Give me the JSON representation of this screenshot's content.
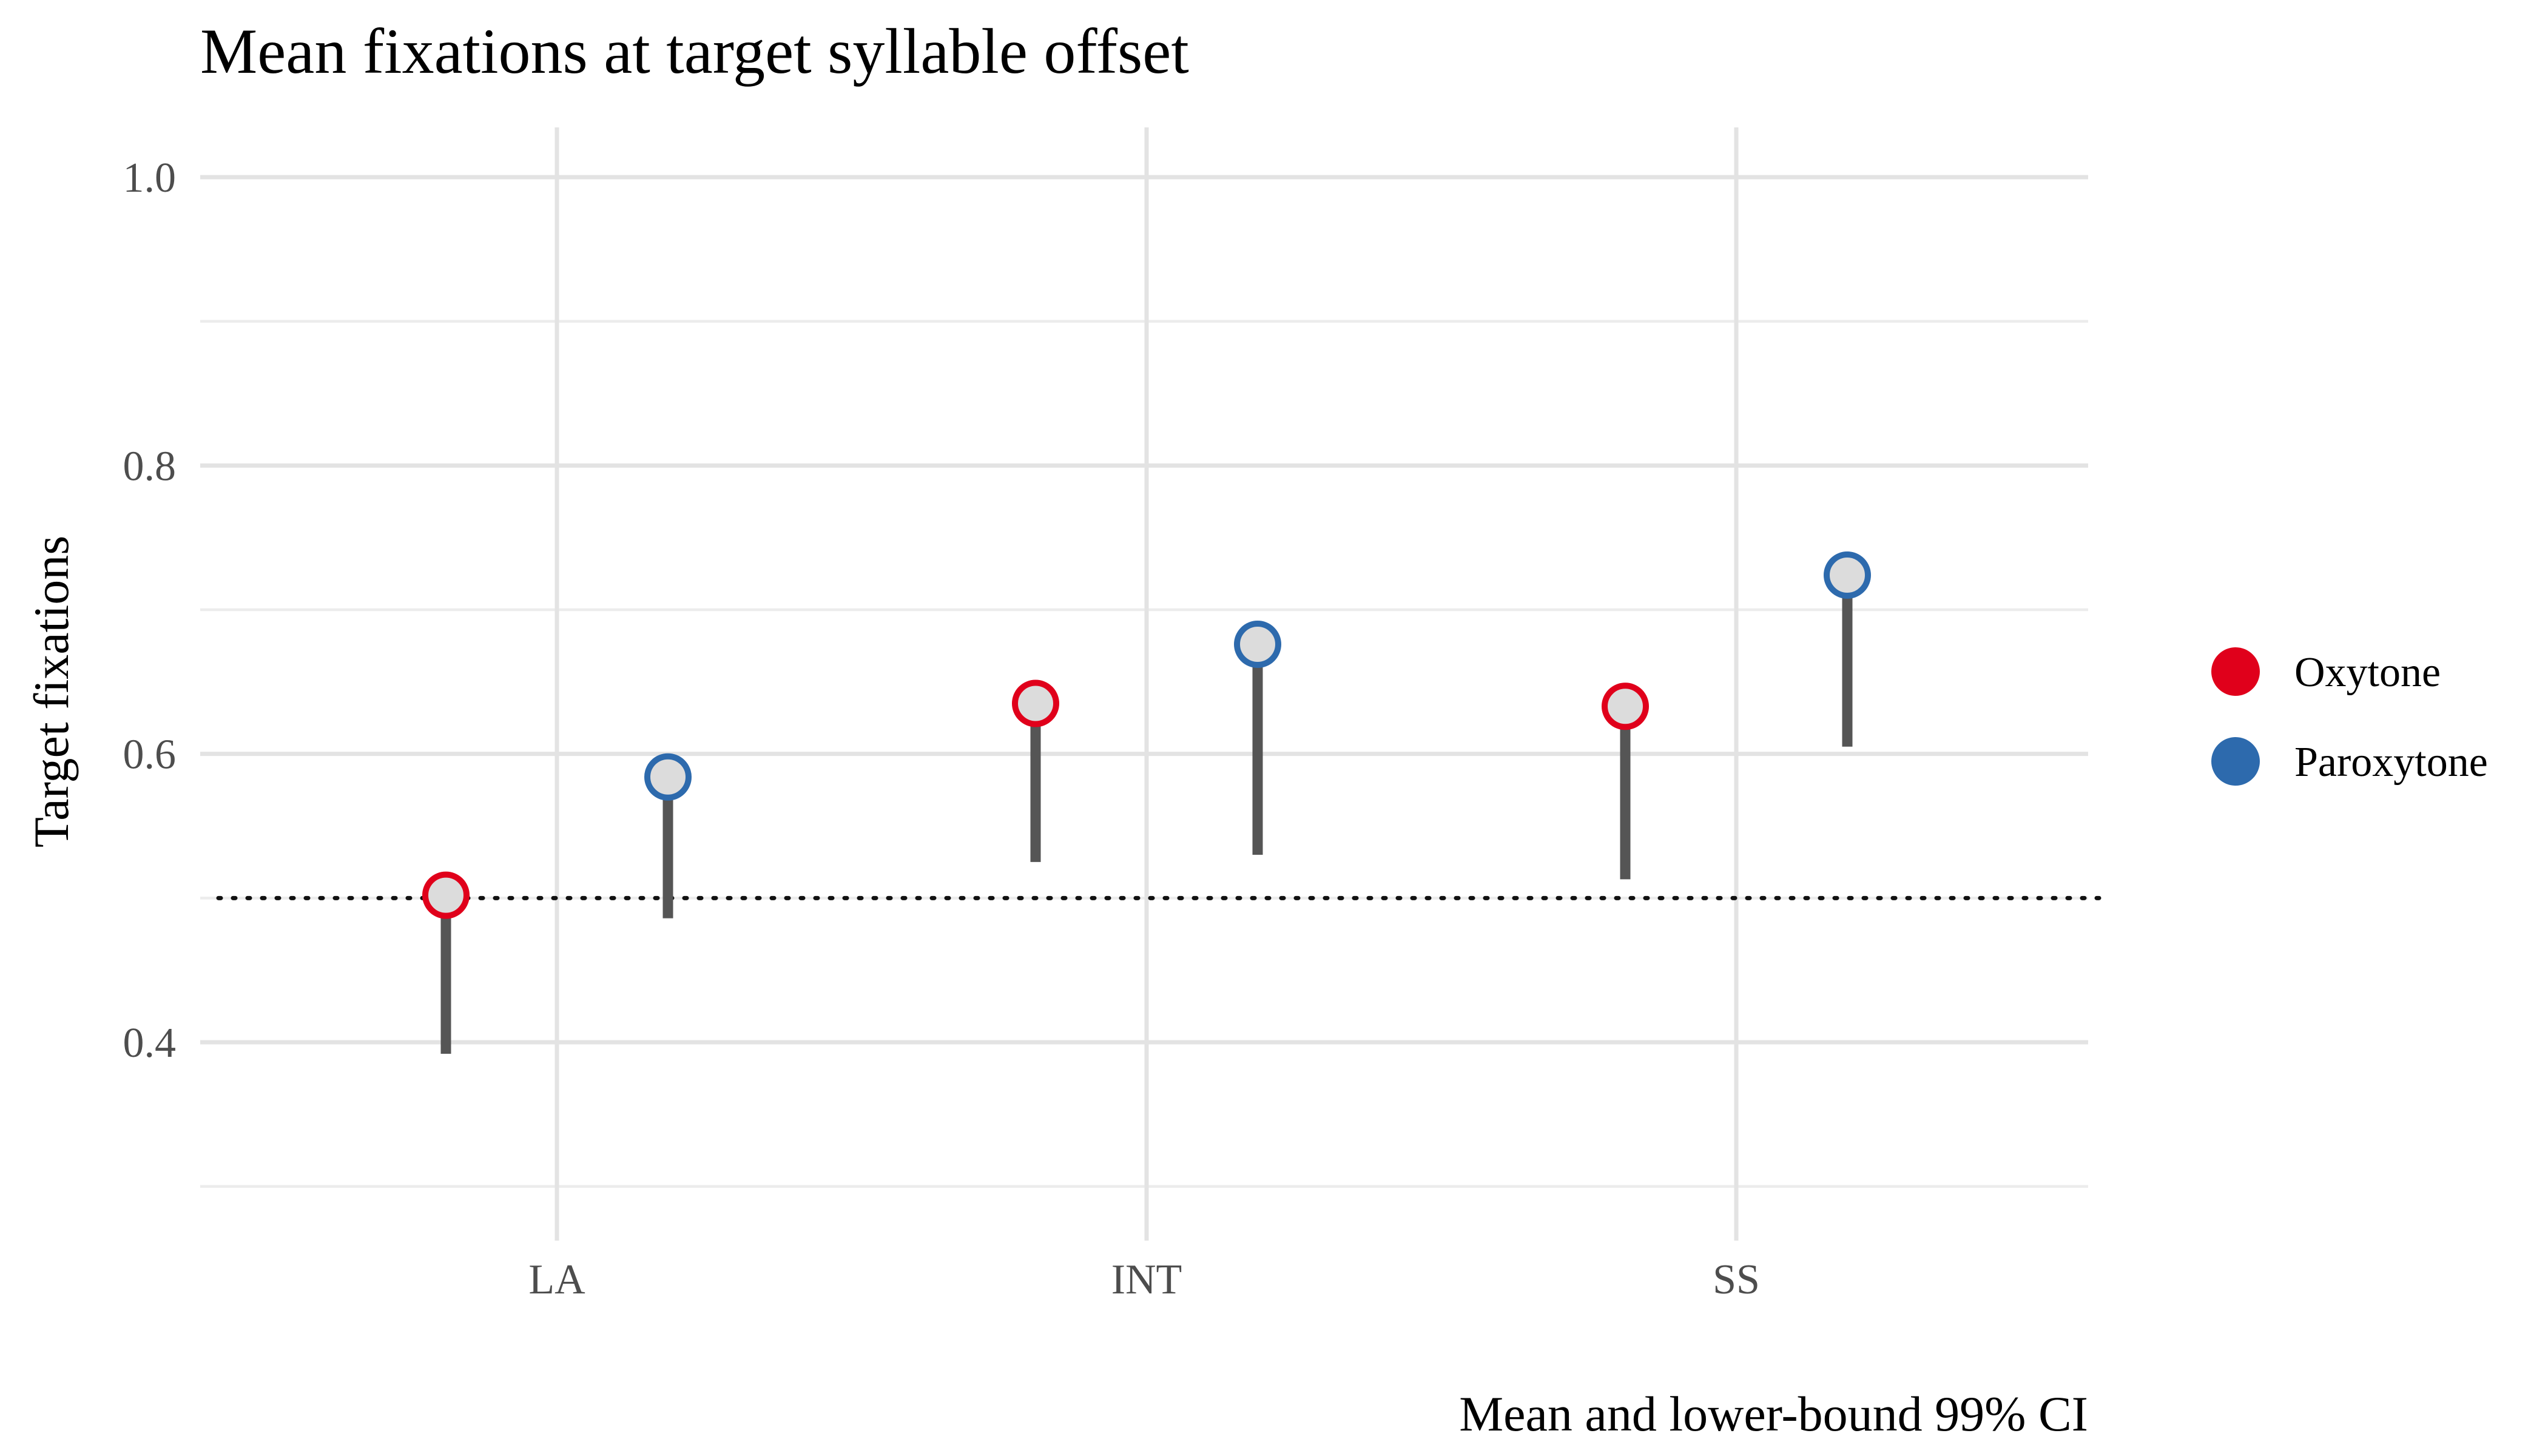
{
  "chart_data": {
    "type": "lollipop",
    "title": "Mean fixations at target syllable offset",
    "xlabel": "",
    "ylabel": "Target fixations",
    "caption": "Mean and lower-bound 99% CI",
    "categories": [
      "LA",
      "INT",
      "SS"
    ],
    "ylim": [
      0.28,
      1.04
    ],
    "yticks": [
      0.4,
      0.6,
      0.8,
      1.0
    ],
    "ytick_labels": [
      "0.4",
      "0.6",
      "0.8",
      "1.0"
    ],
    "reference_line": 0.5,
    "legend_position": "right",
    "grid": true,
    "series": [
      {
        "name": "Oxytone",
        "color": "#e0001b",
        "mean": [
          0.502,
          0.635,
          0.633
        ],
        "lower_ci": [
          0.392,
          0.525,
          0.513
        ]
      },
      {
        "name": "Paroxytone",
        "color": "#2d6aad",
        "mean": [
          0.584,
          0.676,
          0.724
        ],
        "lower_ci": [
          0.486,
          0.53,
          0.605
        ]
      }
    ]
  }
}
